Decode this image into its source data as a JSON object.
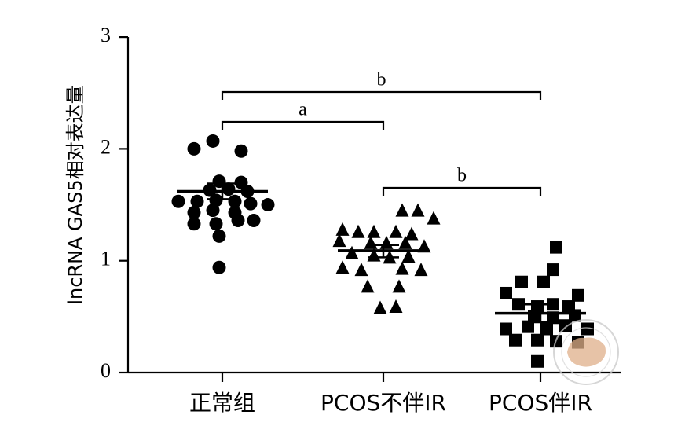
{
  "chart_data": {
    "type": "scatter",
    "ylabel": "lncRNA GAS5相对表达量",
    "ylim": [
      0,
      3
    ],
    "yticks": [
      "0",
      "1",
      "2",
      "3"
    ],
    "categories": [
      "正常组",
      "PCOS不伴IR",
      "PCOS伴IR"
    ],
    "series": [
      {
        "marker": "circle",
        "mean": 1.62,
        "sem": [
          1.55,
          1.69
        ],
        "points": [
          [
            -0.18,
            2.0
          ],
          [
            -0.06,
            2.07
          ],
          [
            0.12,
            1.98
          ],
          [
            -0.02,
            1.71
          ],
          [
            0.12,
            1.7
          ],
          [
            -0.08,
            1.63
          ],
          [
            0.04,
            1.64
          ],
          [
            0.16,
            1.62
          ],
          [
            -0.28,
            1.53
          ],
          [
            -0.16,
            1.53
          ],
          [
            -0.04,
            1.54
          ],
          [
            0.08,
            1.53
          ],
          [
            0.18,
            1.51
          ],
          [
            0.29,
            1.5
          ],
          [
            -0.18,
            1.43
          ],
          [
            -0.06,
            1.45
          ],
          [
            0.08,
            1.43
          ],
          [
            -0.18,
            1.33
          ],
          [
            -0.04,
            1.33
          ],
          [
            0.1,
            1.36
          ],
          [
            0.2,
            1.36
          ],
          [
            -0.02,
            1.22
          ],
          [
            -0.02,
            0.94
          ]
        ]
      },
      {
        "marker": "triangle",
        "mean": 1.09,
        "sem": [
          1.03,
          1.14
        ],
        "points": [
          [
            0.12,
            1.45
          ],
          [
            0.22,
            1.45
          ],
          [
            0.32,
            1.38
          ],
          [
            -0.26,
            1.28
          ],
          [
            -0.16,
            1.26
          ],
          [
            -0.06,
            1.26
          ],
          [
            0.08,
            1.26
          ],
          [
            0.18,
            1.24
          ],
          [
            -0.28,
            1.18
          ],
          [
            -0.08,
            1.16
          ],
          [
            0.02,
            1.16
          ],
          [
            0.14,
            1.16
          ],
          [
            0.26,
            1.13
          ],
          [
            -0.2,
            1.07
          ],
          [
            -0.06,
            1.05
          ],
          [
            0.04,
            1.03
          ],
          [
            0.16,
            1.04
          ],
          [
            -0.26,
            0.94
          ],
          [
            -0.14,
            0.92
          ],
          [
            0.12,
            0.93
          ],
          [
            0.24,
            0.92
          ],
          [
            -0.1,
            0.77
          ],
          [
            0.1,
            0.77
          ],
          [
            -0.02,
            0.58
          ],
          [
            0.08,
            0.59
          ]
        ]
      },
      {
        "marker": "square",
        "mean": 0.53,
        "sem": [
          0.45,
          0.61
        ],
        "points": [
          [
            0.1,
            1.12
          ],
          [
            0.08,
            0.92
          ],
          [
            -0.12,
            0.81
          ],
          [
            0.02,
            0.81
          ],
          [
            -0.22,
            0.71
          ],
          [
            0.24,
            0.69
          ],
          [
            -0.14,
            0.61
          ],
          [
            -0.02,
            0.59
          ],
          [
            0.08,
            0.61
          ],
          [
            0.18,
            0.59
          ],
          [
            -0.04,
            0.5
          ],
          [
            0.08,
            0.49
          ],
          [
            0.22,
            0.51
          ],
          [
            -0.22,
            0.39
          ],
          [
            -0.08,
            0.41
          ],
          [
            0.04,
            0.39
          ],
          [
            0.16,
            0.42
          ],
          [
            0.3,
            0.39
          ],
          [
            -0.16,
            0.29
          ],
          [
            -0.02,
            0.29
          ],
          [
            0.1,
            0.28
          ],
          [
            0.24,
            0.27
          ],
          [
            -0.02,
            0.1
          ]
        ]
      }
    ],
    "comparisons": [
      {
        "from": 0,
        "to": 1,
        "label": "a"
      },
      {
        "from": 0,
        "to": 2,
        "label": "b"
      },
      {
        "from": 1,
        "to": 2,
        "label": "b"
      }
    ]
  }
}
